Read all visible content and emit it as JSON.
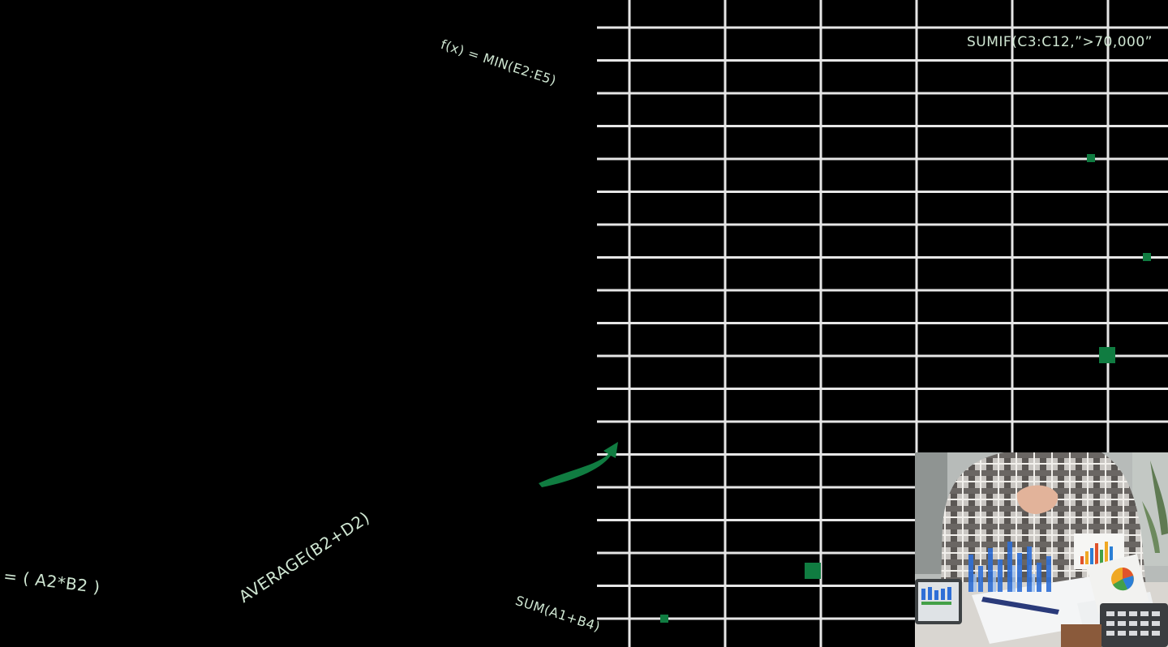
{
  "formulas": {
    "min": "f(x) = MIN(E2:E5)",
    "sumif": "SUMIF(C3:C12,”>70,000”",
    "product": "= ( A2*B2 )",
    "average": "AVERAGE(B2+D2)",
    "sum": "SUM(A1+B4)"
  },
  "colors": {
    "background": "#000000",
    "grid": "#e6e6e6",
    "accent_green": "#107c41",
    "formula_text": "#cfe6d2"
  },
  "icons": {
    "arrow": "curved-arrow-icon",
    "cell_markers": "green-square-icon"
  },
  "photo": {
    "subject": "person-analyzing-charts-photo"
  }
}
